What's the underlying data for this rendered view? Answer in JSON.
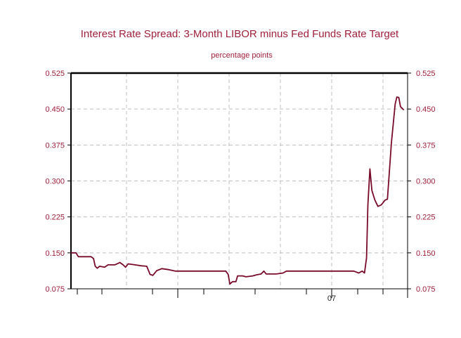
{
  "chart_data": {
    "type": "line",
    "title": "Interest Rate Spread: 3-Month LIBOR minus Fed Funds Rate Target",
    "subtitle": "percentage points",
    "xlabel": "",
    "ylabel": "",
    "ylim": [
      0.075,
      0.525
    ],
    "y_ticks": [
      "0.525",
      "0.450",
      "0.375",
      "0.300",
      "0.225",
      "0.150",
      "0.075"
    ],
    "x_tick_labels": [
      "07"
    ],
    "xlim": [
      0,
      100
    ],
    "grid": true,
    "legend": "none",
    "colors": {
      "line": "#7a0a2a",
      "text": "#a0203a",
      "grid": "#bfbfbf",
      "axis": "#000000"
    },
    "series": [
      {
        "values": [
          [
            0,
            0.15
          ],
          [
            1.5,
            0.15
          ],
          [
            2.2,
            0.142
          ],
          [
            6,
            0.142
          ],
          [
            6.7,
            0.138
          ],
          [
            7.2,
            0.122
          ],
          [
            7.8,
            0.118
          ],
          [
            8.5,
            0.122
          ],
          [
            10,
            0.12
          ],
          [
            11,
            0.125
          ],
          [
            13,
            0.125
          ],
          [
            14,
            0.128
          ],
          [
            14.5,
            0.13
          ],
          [
            15.5,
            0.125
          ],
          [
            16.2,
            0.12
          ],
          [
            17,
            0.127
          ],
          [
            19,
            0.125
          ],
          [
            21,
            0.123
          ],
          [
            22.5,
            0.122
          ],
          [
            23.5,
            0.105
          ],
          [
            24.3,
            0.103
          ],
          [
            25.5,
            0.113
          ],
          [
            27,
            0.117
          ],
          [
            29,
            0.115
          ],
          [
            31,
            0.112
          ],
          [
            40,
            0.112
          ],
          [
            46,
            0.112
          ],
          [
            46.7,
            0.105
          ],
          [
            47.2,
            0.085
          ],
          [
            48,
            0.09
          ],
          [
            49,
            0.09
          ],
          [
            49.5,
            0.102
          ],
          [
            51,
            0.102
          ],
          [
            52,
            0.1
          ],
          [
            54,
            0.102
          ],
          [
            55,
            0.104
          ],
          [
            56.5,
            0.106
          ],
          [
            57.3,
            0.112
          ],
          [
            58,
            0.106
          ],
          [
            61,
            0.106
          ],
          [
            63,
            0.108
          ],
          [
            64,
            0.112
          ],
          [
            70,
            0.112
          ],
          [
            80,
            0.112
          ],
          [
            84,
            0.112
          ],
          [
            85.5,
            0.108
          ],
          [
            86.5,
            0.112
          ],
          [
            87.2,
            0.108
          ],
          [
            87.8,
            0.14
          ],
          [
            88.2,
            0.25
          ],
          [
            88.8,
            0.325
          ],
          [
            89.4,
            0.28
          ],
          [
            90.3,
            0.26
          ],
          [
            91.2,
            0.247
          ],
          [
            92.2,
            0.25
          ],
          [
            93.3,
            0.26
          ],
          [
            94,
            0.262
          ],
          [
            95.2,
            0.38
          ],
          [
            96.3,
            0.46
          ],
          [
            96.8,
            0.475
          ],
          [
            97.4,
            0.474
          ],
          [
            97.9,
            0.455
          ],
          [
            98.6,
            0.45
          ],
          [
            98.9,
            0.448
          ]
        ]
      }
    ]
  }
}
